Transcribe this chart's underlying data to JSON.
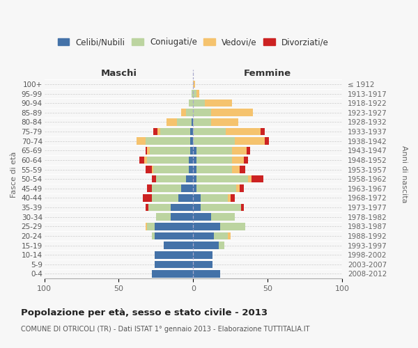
{
  "age_groups": [
    "0-4",
    "5-9",
    "10-14",
    "15-19",
    "20-24",
    "25-29",
    "30-34",
    "35-39",
    "40-44",
    "45-49",
    "50-54",
    "55-59",
    "60-64",
    "65-69",
    "70-74",
    "75-79",
    "80-84",
    "85-89",
    "90-94",
    "95-99",
    "100+"
  ],
  "birth_years": [
    "2008-2012",
    "2003-2007",
    "1998-2002",
    "1993-1997",
    "1988-1992",
    "1983-1987",
    "1978-1982",
    "1973-1977",
    "1968-1972",
    "1963-1967",
    "1958-1962",
    "1953-1957",
    "1948-1952",
    "1943-1947",
    "1938-1942",
    "1933-1937",
    "1928-1932",
    "1923-1927",
    "1918-1922",
    "1913-1917",
    "≤ 1912"
  ],
  "male_celibe": [
    28,
    26,
    26,
    20,
    26,
    26,
    15,
    15,
    10,
    8,
    5,
    3,
    3,
    2,
    2,
    2,
    1,
    0,
    0,
    0,
    0
  ],
  "male_coniugato": [
    0,
    0,
    0,
    0,
    2,
    5,
    10,
    15,
    18,
    20,
    20,
    24,
    28,
    27,
    30,
    20,
    10,
    5,
    3,
    1,
    0
  ],
  "male_vedovo": [
    0,
    0,
    0,
    0,
    0,
    1,
    0,
    0,
    0,
    0,
    0,
    1,
    2,
    2,
    6,
    2,
    7,
    3,
    0,
    0,
    0
  ],
  "male_divorziato": [
    0,
    0,
    0,
    0,
    0,
    0,
    0,
    2,
    6,
    3,
    3,
    4,
    3,
    1,
    0,
    3,
    0,
    0,
    0,
    0,
    0
  ],
  "female_nubile": [
    18,
    13,
    13,
    17,
    14,
    18,
    12,
    5,
    5,
    2,
    2,
    2,
    2,
    2,
    0,
    0,
    0,
    0,
    0,
    0,
    0
  ],
  "female_coniugata": [
    0,
    0,
    0,
    4,
    9,
    17,
    16,
    27,
    18,
    27,
    35,
    24,
    24,
    24,
    28,
    22,
    12,
    12,
    8,
    2,
    0
  ],
  "female_vedova": [
    0,
    0,
    0,
    0,
    2,
    0,
    0,
    0,
    2,
    2,
    2,
    5,
    8,
    10,
    20,
    23,
    18,
    28,
    18,
    2,
    1
  ],
  "female_divorziata": [
    0,
    0,
    0,
    0,
    0,
    0,
    0,
    2,
    3,
    3,
    8,
    4,
    3,
    2,
    3,
    3,
    0,
    0,
    0,
    0,
    0
  ],
  "color_celibe": "#4472a8",
  "color_coniugato": "#bcd4a0",
  "color_vedovo": "#f5c36e",
  "color_divorziato": "#cc2222",
  "xlim": 100,
  "title": "Popolazione per età, sesso e stato civile - 2013",
  "subtitle": "COMUNE DI OTRICOLI (TR) - Dati ISTAT 1° gennaio 2013 - Elaborazione TUTTITALIA.IT",
  "label_maschi": "Maschi",
  "label_femmine": "Femmine",
  "ylabel_left": "Fasce di età",
  "ylabel_right": "Anni di nascita",
  "legend_labels": [
    "Celibi/Nubili",
    "Coniugati/e",
    "Vedovi/e",
    "Divorziati/e"
  ],
  "bg_color": "#f7f7f7"
}
